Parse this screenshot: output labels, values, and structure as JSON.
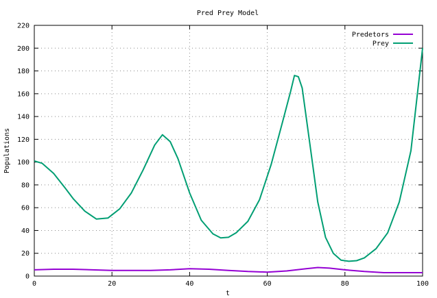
{
  "chart_data": {
    "type": "line",
    "title": "Pred Prey Model",
    "xlabel": "t",
    "ylabel": "Populations",
    "xlim": [
      0,
      100
    ],
    "ylim": [
      0,
      220
    ],
    "xticks": [
      0,
      20,
      40,
      60,
      80,
      100
    ],
    "yticks": [
      0,
      20,
      40,
      60,
      80,
      100,
      120,
      140,
      160,
      180,
      200,
      220
    ],
    "grid": true,
    "legend_position": "top-right",
    "series": [
      {
        "name": "Predetors",
        "color": "#9400d3",
        "x": [
          0,
          5,
          10,
          15,
          20,
          25,
          30,
          35,
          40,
          45,
          50,
          55,
          60,
          65,
          70,
          73,
          76,
          80,
          85,
          90,
          95,
          100
        ],
        "y": [
          5.5,
          6,
          6,
          5.5,
          5,
          5,
          5,
          5.5,
          6.5,
          6,
          5,
          4,
          3.5,
          4.5,
          6.5,
          7.5,
          7,
          5.5,
          4,
          3,
          3,
          3
        ]
      },
      {
        "name": "Prey",
        "color": "#009e73",
        "x": [
          0,
          2,
          5,
          8,
          10,
          13,
          16,
          19,
          22,
          25,
          28,
          31,
          33,
          35,
          37,
          40,
          43,
          46,
          48,
          50,
          52,
          55,
          58,
          61,
          64,
          66,
          67,
          68,
          69,
          71,
          73,
          75,
          77,
          79,
          81,
          83,
          85,
          88,
          91,
          94,
          97,
          100
        ],
        "y": [
          101,
          99,
          90,
          77,
          68,
          57,
          50,
          51,
          59,
          73,
          93,
          115,
          124,
          118,
          103,
          73,
          49,
          37,
          33.5,
          34,
          38,
          48,
          67,
          98,
          136,
          162,
          176,
          175,
          165,
          115,
          65,
          34,
          20,
          14,
          13,
          13.5,
          16,
          24,
          38,
          65,
          110,
          200
        ]
      }
    ]
  }
}
